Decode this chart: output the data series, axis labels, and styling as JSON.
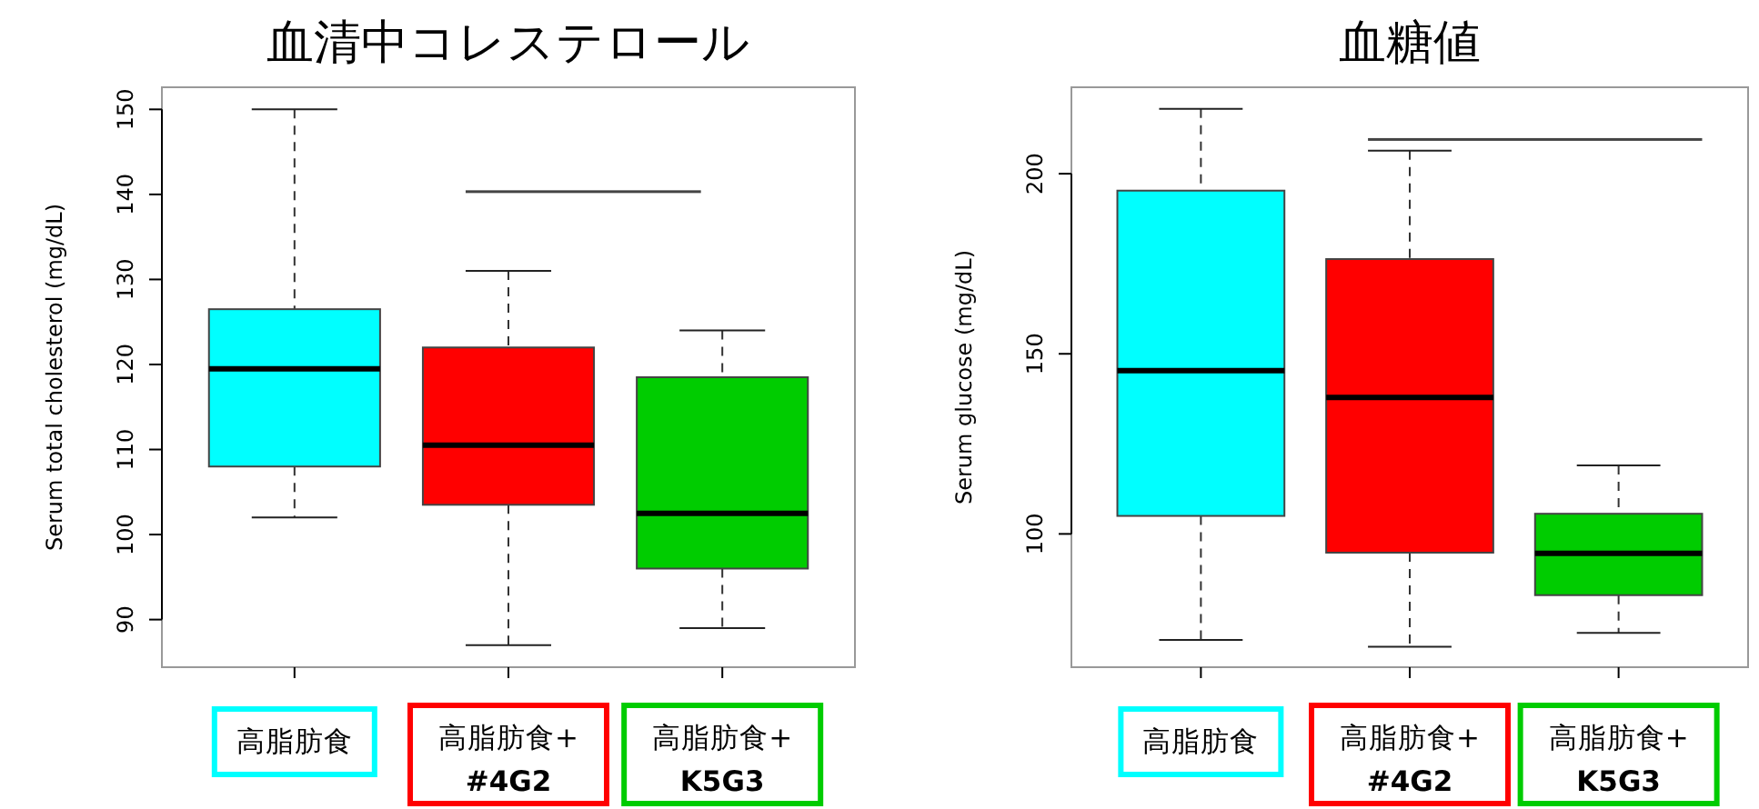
{
  "chart_data": [
    {
      "type": "box",
      "title": "血清中コレステロール",
      "ylabel": "Serum total cholesterol (mg/dL)",
      "categories": [
        "高脂肪食",
        "高脂肪食+\n#4G2",
        "高脂肪食+\nK5G3"
      ],
      "colors": [
        "#00ffff",
        "#ff0000",
        "#00cc00"
      ],
      "ylim": [
        84.4,
        152.6
      ],
      "yticks": [
        90,
        100,
        110,
        120,
        130,
        140,
        150
      ],
      "grid": false,
      "legend": false,
      "boxes": [
        {
          "low": 102,
          "q1": 108,
          "median": 119.5,
          "q3": 126.5,
          "high": 150
        },
        {
          "low": 87,
          "q1": 103.5,
          "median": 110.5,
          "q3": 122,
          "high": 131
        },
        {
          "low": 89,
          "q1": 96,
          "median": 102.5,
          "q3": 118.5,
          "high": 124
        }
      ]
    },
    {
      "type": "box",
      "title": "血糖値",
      "ylabel": "Serum glucose (mg/dL)",
      "categories": [
        "高脂肪食",
        "高脂肪食+\n#4G2",
        "高脂肪食+\nK5G3"
      ],
      "colors": [
        "#00ffff",
        "#ff0000",
        "#00cc00"
      ],
      "ylim": [
        63,
        224
      ],
      "yticks": [
        100,
        150,
        200
      ],
      "grid": false,
      "legend": false,
      "boxes": [
        {
          "low": 70.6,
          "q1": 105,
          "median": 145.3,
          "q3": 195.3,
          "high": 218
        },
        {
          "low": 68.7,
          "q1": 94.8,
          "median": 137.9,
          "q3": 176.3,
          "high": 206.4
        },
        {
          "low": 72.5,
          "q1": 83,
          "median": 94.6,
          "q3": 105.6,
          "high": 119
        }
      ]
    }
  ]
}
